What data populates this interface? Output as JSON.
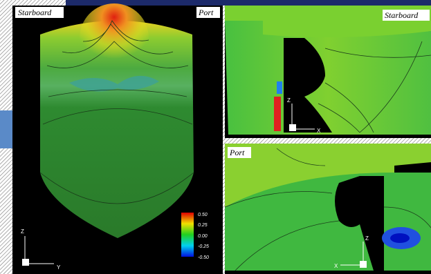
{
  "left_view": {
    "label_left": "Starboard",
    "label_right": "Port",
    "colorbar": {
      "labels": [
        "0.50",
        "0.25",
        "0.00",
        "-0.25",
        "-0.50"
      ]
    },
    "axes": {
      "vertical": "Z",
      "horizontal": "Y"
    }
  },
  "top_right_view": {
    "label": "Starboard",
    "axes": {
      "vertical": "Z",
      "horizontal": "X"
    }
  },
  "bottom_right_view": {
    "label": "Port",
    "axes": {
      "vertical": "Z",
      "horizontal": "X"
    }
  }
}
